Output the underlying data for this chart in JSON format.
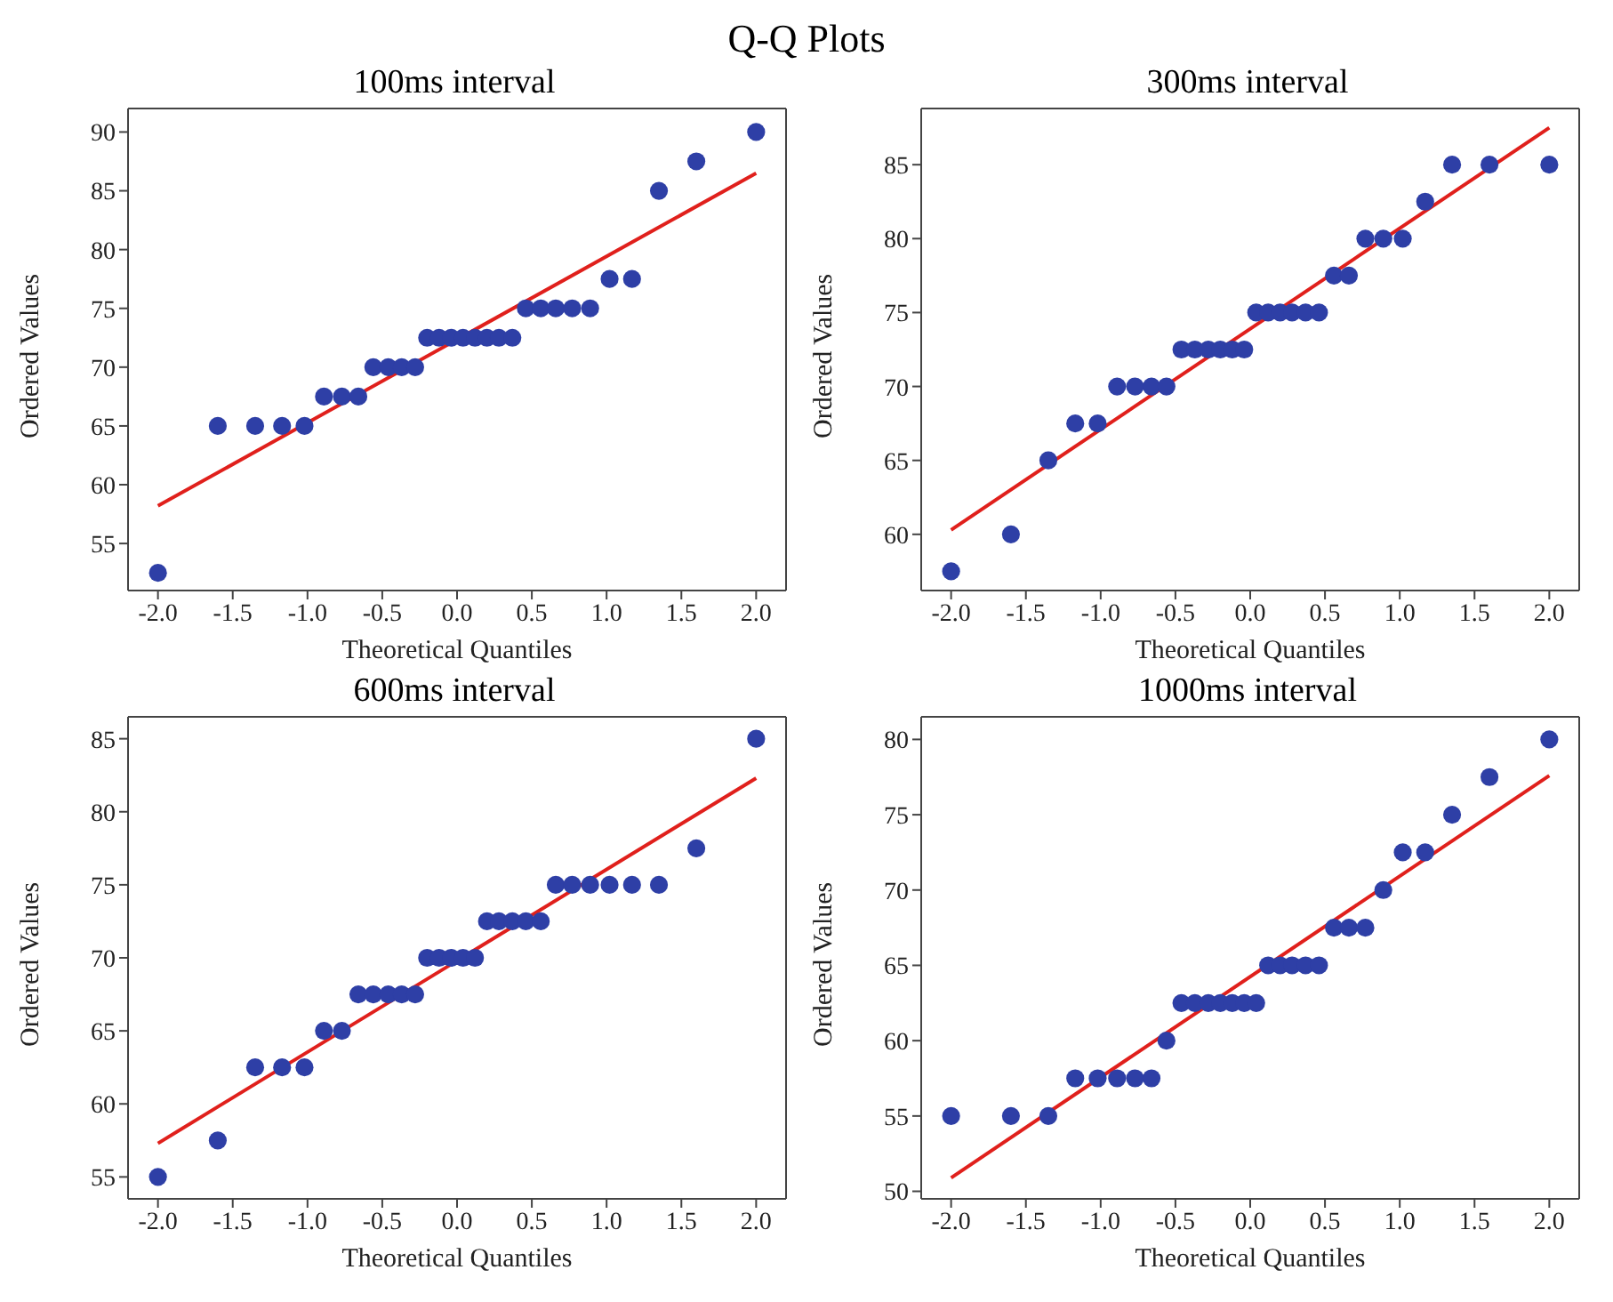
{
  "chart_data": [
    {
      "type": "scatter",
      "title": "100ms interval",
      "xlabel": "Theoretical Quantiles",
      "ylabel": "Ordered Values",
      "annotations": [
        "Q-Q Plots"
      ],
      "marker": "circle",
      "grid": false,
      "xlim": [
        -2.2,
        2.2
      ],
      "xticks": [
        {
          "value": -2,
          "label": "-2.0"
        },
        {
          "value": -1.5,
          "label": "-1.5"
        },
        {
          "value": -1,
          "label": "-1.0"
        },
        {
          "value": -0.5,
          "label": "-0.5"
        },
        {
          "value": 0,
          "label": "0.0"
        },
        {
          "value": 0.5,
          "label": "0.5"
        },
        {
          "value": 1,
          "label": "1.0"
        },
        {
          "value": 1.5,
          "label": "1.5"
        },
        {
          "value": 2,
          "label": "2.0"
        }
      ],
      "ylim": [
        51,
        92
      ],
      "yticks": [
        55,
        60,
        65,
        70,
        75,
        80,
        85,
        90
      ],
      "series": [
        {
          "color": "#2e3fa6",
          "x": [
            -2,
            -1.6,
            -1.35,
            -1.17,
            -1.02,
            -0.89,
            -0.77,
            -0.66,
            -0.56,
            -0.46,
            -0.37,
            -0.28,
            -0.2,
            -0.12,
            -0.04,
            0.04,
            0.12,
            0.2,
            0.28,
            0.37,
            0.46,
            0.56,
            0.66,
            0.77,
            0.89,
            1.02,
            1.17,
            1.35,
            1.6,
            2
          ],
          "values": [
            52.5,
            65,
            65,
            65,
            65,
            67.5,
            67.5,
            67.5,
            70,
            70,
            70,
            70,
            72.5,
            72.5,
            72.5,
            72.5,
            72.5,
            72.5,
            72.5,
            72.5,
            75,
            75,
            75,
            75,
            75,
            77.5,
            77.5,
            85,
            87.5,
            90
          ]
        },
        {
          "type": "line",
          "marker": "none",
          "color": "#e0201c",
          "x": [
            -2,
            2
          ],
          "values": [
            58.2,
            86.5
          ]
        }
      ]
    },
    {
      "type": "scatter",
      "title": "300ms interval",
      "xlabel": "Theoretical Quantiles",
      "ylabel": "Ordered Values",
      "marker": "circle",
      "grid": false,
      "xlim": [
        -2.2,
        2.2
      ],
      "xticks": [
        {
          "value": -2,
          "label": "-2.0"
        },
        {
          "value": -1.5,
          "label": "-1.5"
        },
        {
          "value": -1,
          "label": "-1.0"
        },
        {
          "value": -0.5,
          "label": "-0.5"
        },
        {
          "value": 0,
          "label": "0.0"
        },
        {
          "value": 0.5,
          "label": "0.5"
        },
        {
          "value": 1,
          "label": "1.0"
        },
        {
          "value": 1.5,
          "label": "1.5"
        },
        {
          "value": 2,
          "label": "2.0"
        }
      ],
      "ylim": [
        56.2,
        88.8
      ],
      "yticks": [
        60,
        65,
        70,
        75,
        80,
        85
      ],
      "series": [
        {
          "color": "#2e3fa6",
          "x": [
            -2,
            -1.6,
            -1.35,
            -1.17,
            -1.02,
            -0.89,
            -0.77,
            -0.66,
            -0.56,
            -0.46,
            -0.37,
            -0.28,
            -0.2,
            -0.12,
            -0.04,
            0.04,
            0.12,
            0.2,
            0.28,
            0.37,
            0.46,
            0.56,
            0.66,
            0.77,
            0.89,
            1.02,
            1.17,
            1.35,
            1.6,
            2
          ],
          "values": [
            57.5,
            60,
            65,
            67.5,
            67.5,
            70,
            70,
            70,
            70,
            72.5,
            72.5,
            72.5,
            72.5,
            72.5,
            72.5,
            75,
            75,
            75,
            75,
            75,
            75,
            77.5,
            77.5,
            80,
            80,
            80,
            82.5,
            85,
            85,
            85
          ]
        },
        {
          "type": "line",
          "marker": "none",
          "color": "#e0201c",
          "x": [
            -2,
            2
          ],
          "values": [
            60.3,
            87.5
          ]
        }
      ]
    },
    {
      "type": "scatter",
      "title": "600ms interval",
      "xlabel": "Theoretical Quantiles",
      "ylabel": "Ordered Values",
      "marker": "circle",
      "grid": false,
      "xlim": [
        -2.2,
        2.2
      ],
      "xticks": [
        {
          "value": -2,
          "label": "-2.0"
        },
        {
          "value": -1.5,
          "label": "-1.5"
        },
        {
          "value": -1,
          "label": "-1.0"
        },
        {
          "value": -0.5,
          "label": "-0.5"
        },
        {
          "value": 0,
          "label": "0.0"
        },
        {
          "value": 0.5,
          "label": "0.5"
        },
        {
          "value": 1,
          "label": "1.0"
        },
        {
          "value": 1.5,
          "label": "1.5"
        },
        {
          "value": 2,
          "label": "2.0"
        }
      ],
      "ylim": [
        53.5,
        86.5
      ],
      "yticks": [
        55,
        60,
        65,
        70,
        75,
        80,
        85
      ],
      "series": [
        {
          "color": "#2e3fa6",
          "x": [
            -2,
            -1.6,
            -1.35,
            -1.17,
            -1.02,
            -0.89,
            -0.77,
            -0.66,
            -0.56,
            -0.46,
            -0.37,
            -0.28,
            -0.2,
            -0.12,
            -0.04,
            0.04,
            0.12,
            0.2,
            0.28,
            0.37,
            0.46,
            0.56,
            0.66,
            0.77,
            0.89,
            1.02,
            1.17,
            1.35,
            1.6,
            2
          ],
          "values": [
            55,
            57.5,
            62.5,
            62.5,
            62.5,
            65,
            65,
            67.5,
            67.5,
            67.5,
            67.5,
            67.5,
            70,
            70,
            70,
            70,
            70,
            72.5,
            72.5,
            72.5,
            72.5,
            72.5,
            75,
            75,
            75,
            75,
            75,
            75,
            77.5,
            85
          ]
        },
        {
          "type": "line",
          "marker": "none",
          "color": "#e0201c",
          "x": [
            -2,
            2
          ],
          "values": [
            57.3,
            82.3
          ]
        }
      ]
    },
    {
      "type": "scatter",
      "title": "1000ms interval",
      "xlabel": "Theoretical Quantiles",
      "ylabel": "Ordered Values",
      "marker": "circle",
      "grid": false,
      "xlim": [
        -2.2,
        2.2
      ],
      "xticks": [
        {
          "value": -2,
          "label": "-2.0"
        },
        {
          "value": -1.5,
          "label": "-1.5"
        },
        {
          "value": -1,
          "label": "-1.0"
        },
        {
          "value": -0.5,
          "label": "-0.5"
        },
        {
          "value": 0,
          "label": "0.0"
        },
        {
          "value": 0.5,
          "label": "0.5"
        },
        {
          "value": 1,
          "label": "1.0"
        },
        {
          "value": 1.5,
          "label": "1.5"
        },
        {
          "value": 2,
          "label": "2.0"
        }
      ],
      "ylim": [
        49.5,
        81.5
      ],
      "yticks": [
        50,
        55,
        60,
        65,
        70,
        75,
        80
      ],
      "series": [
        {
          "color": "#2e3fa6",
          "x": [
            -2,
            -1.6,
            -1.35,
            -1.17,
            -1.02,
            -0.89,
            -0.77,
            -0.66,
            -0.56,
            -0.46,
            -0.37,
            -0.28,
            -0.2,
            -0.12,
            -0.04,
            0.04,
            0.12,
            0.2,
            0.28,
            0.37,
            0.46,
            0.56,
            0.66,
            0.77,
            0.89,
            1.02,
            1.17,
            1.35,
            1.6,
            2
          ],
          "values": [
            55,
            55,
            55,
            57.5,
            57.5,
            57.5,
            57.5,
            57.5,
            60,
            62.5,
            62.5,
            62.5,
            62.5,
            62.5,
            62.5,
            62.5,
            65,
            65,
            65,
            65,
            65,
            67.5,
            67.5,
            67.5,
            70,
            72.5,
            72.5,
            75,
            77.5,
            80
          ]
        },
        {
          "type": "line",
          "marker": "none",
          "color": "#e0201c",
          "x": [
            -2,
            2
          ],
          "values": [
            50.9,
            77.6
          ]
        }
      ]
    }
  ]
}
